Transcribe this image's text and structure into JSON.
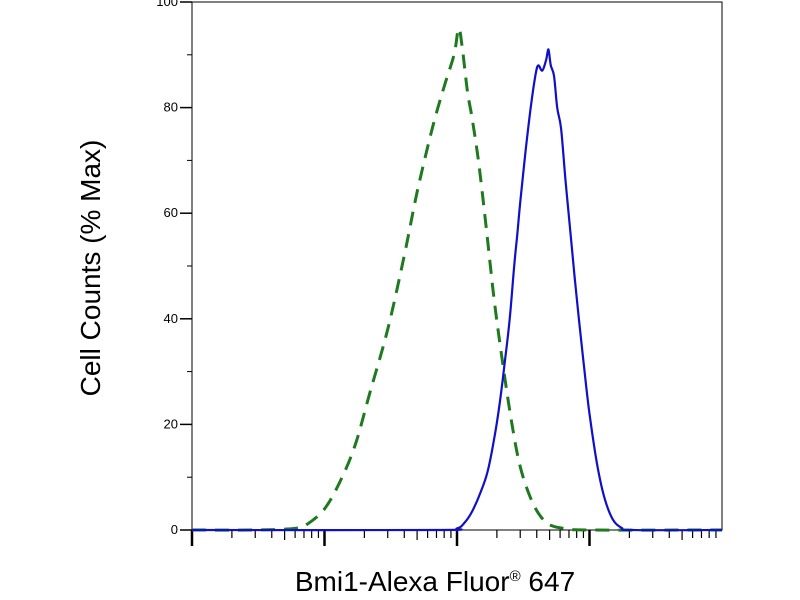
{
  "chart_data": {
    "type": "line",
    "title": "",
    "xlabel": "Bmi1-Alexa Fluor",
    "xlabel_superscript": "®",
    "xlabel_suffix": " 647",
    "ylabel": "Cell Counts (% Max)",
    "x_scale": "log",
    "xlim": [
      1,
      10000
    ],
    "ylim": [
      0,
      100
    ],
    "y_ticks": [
      0,
      20,
      40,
      60,
      80,
      100
    ],
    "y_tick_labels": [
      "0",
      "20",
      "40",
      "60",
      "80",
      "100"
    ],
    "grid": false,
    "legend": "none",
    "series": [
      {
        "color": "#1e7a1e",
        "line_style": "dashed",
        "points": [
          [
            1,
            0
          ],
          [
            3,
            0
          ],
          [
            6,
            0.3
          ],
          [
            7.5,
            1.2
          ],
          [
            10,
            4
          ],
          [
            13,
            9
          ],
          [
            17,
            16
          ],
          [
            22,
            26
          ],
          [
            30,
            38
          ],
          [
            40,
            52
          ],
          [
            50,
            64
          ],
          [
            65,
            76
          ],
          [
            80,
            84
          ],
          [
            95,
            90
          ],
          [
            103,
            95
          ],
          [
            110,
            91
          ],
          [
            120,
            83
          ],
          [
            130,
            78
          ],
          [
            145,
            70
          ],
          [
            165,
            58
          ],
          [
            190,
            44
          ],
          [
            220,
            32
          ],
          [
            260,
            20
          ],
          [
            300,
            12
          ],
          [
            360,
            6
          ],
          [
            430,
            2.5
          ],
          [
            520,
            0.8
          ],
          [
            700,
            0.2
          ],
          [
            1000,
            0
          ],
          [
            10000,
            0
          ]
        ]
      },
      {
        "color": "#1010c8",
        "line_style": "solid",
        "points": [
          [
            1,
            0
          ],
          [
            70,
            0
          ],
          [
            100,
            0.3
          ],
          [
            115,
            1.5
          ],
          [
            130,
            3.5
          ],
          [
            150,
            7
          ],
          [
            170,
            11
          ],
          [
            190,
            17
          ],
          [
            210,
            24
          ],
          [
            230,
            32
          ],
          [
            250,
            40
          ],
          [
            270,
            50
          ],
          [
            285,
            56
          ],
          [
            300,
            62
          ],
          [
            330,
            72
          ],
          [
            360,
            80
          ],
          [
            390,
            86
          ],
          [
            410,
            88
          ],
          [
            440,
            87
          ],
          [
            470,
            89
          ],
          [
            490,
            91
          ],
          [
            510,
            88
          ],
          [
            540,
            86
          ],
          [
            570,
            80
          ],
          [
            610,
            76
          ],
          [
            660,
            66
          ],
          [
            720,
            56
          ],
          [
            800,
            44
          ],
          [
            900,
            32
          ],
          [
            1000,
            22
          ],
          [
            1150,
            12
          ],
          [
            1300,
            6
          ],
          [
            1500,
            2
          ],
          [
            1750,
            0.4
          ],
          [
            2100,
            0
          ],
          [
            10000,
            0
          ]
        ]
      }
    ]
  }
}
